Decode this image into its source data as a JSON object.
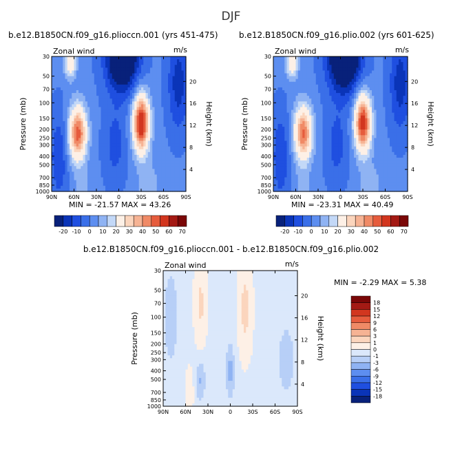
{
  "page_title": "DJF",
  "panel_a": {
    "title": "b.e12.B1850CN.f09_g16.plioccn.001 (yrs 451-475)",
    "label": "Zonal wind",
    "units": "m/s",
    "stats": "MIN = -21.57 MAX = 43.26"
  },
  "panel_b": {
    "title": "b.e12.B1850CN.f09_g16.plio.002 (yrs 601-625)",
    "label": "Zonal wind",
    "units": "m/s",
    "stats": "MIN = -23.31 MAX = 40.49"
  },
  "panel_c": {
    "title": "b.e12.B1850CN.f09_g16.plioccn.001 - b.e12.B1850CN.f09_g16.plio.002",
    "label": "Zonal wind",
    "units": "m/s",
    "stats": "MIN = -2.29 MAX = 5.38"
  },
  "chart_data": [
    {
      "type": "heatmap",
      "title": "b.e12.B1850CN.f09_g16.plioccn.001 (yrs 451-475)",
      "variable": "Zonal wind",
      "units": "m/s",
      "ylabel": "Pressure (mb)",
      "ylabel_right": "Height (km)",
      "x_ticks": [
        "90N",
        "60N",
        "30N",
        "0",
        "30S",
        "60S",
        "90S"
      ],
      "y_ticks": [
        "30",
        "50",
        "70",
        "100",
        "150",
        "200",
        "250",
        "300",
        "400",
        "500",
        "700",
        "850",
        "1000"
      ],
      "y_ticks_right": [
        "4",
        "8",
        "12",
        "16",
        "20"
      ],
      "min": -21.57,
      "max": 43.26,
      "features": [
        {
          "kind": "jet_max",
          "lat": -30,
          "pressure": 170,
          "value": 43
        },
        {
          "kind": "jet_max",
          "lat": 55,
          "pressure": 220,
          "value": 35
        },
        {
          "kind": "easterly_min",
          "lat": -5,
          "pressure": 30,
          "value": -21.57
        }
      ],
      "colorbar": {
        "levels": [
          -20,
          -10,
          0,
          10,
          20,
          30,
          40,
          50,
          60,
          70
        ],
        "tick_labels": [
          "-20",
          "-10",
          "0",
          "10",
          "20",
          "30",
          "40",
          "50",
          "60",
          "70"
        ]
      }
    },
    {
      "type": "heatmap",
      "title": "b.e12.B1850CN.f09_g16.plio.002 (yrs 601-625)",
      "variable": "Zonal wind",
      "units": "m/s",
      "ylabel": "Pressure (mb)",
      "ylabel_right": "Height (km)",
      "x_ticks": [
        "90N",
        "60N",
        "30N",
        "0",
        "30S",
        "60S",
        "90S"
      ],
      "y_ticks": [
        "30",
        "50",
        "70",
        "100",
        "150",
        "200",
        "250",
        "300",
        "400",
        "500",
        "700",
        "850",
        "1000"
      ],
      "y_ticks_right": [
        "4",
        "8",
        "12",
        "16",
        "20"
      ],
      "min": -23.31,
      "max": 40.49,
      "features": [
        {
          "kind": "jet_max",
          "lat": -30,
          "pressure": 170,
          "value": 40
        },
        {
          "kind": "jet_max",
          "lat": 50,
          "pressure": 230,
          "value": 33
        },
        {
          "kind": "easterly_min",
          "lat": -5,
          "pressure": 30,
          "value": -23.31
        }
      ],
      "colorbar": {
        "levels": [
          -20,
          -10,
          0,
          10,
          20,
          30,
          40,
          50,
          60,
          70
        ],
        "tick_labels": [
          "-20",
          "-10",
          "0",
          "10",
          "20",
          "30",
          "40",
          "50",
          "60",
          "70"
        ]
      }
    },
    {
      "type": "heatmap",
      "title": "b.e12.B1850CN.f09_g16.plioccn.001 - b.e12.B1850CN.f09_g16.plio.002",
      "variable": "Zonal wind",
      "units": "m/s",
      "ylabel": "Pressure (mb)",
      "ylabel_right": "Height (km)",
      "x_ticks": [
        "90N",
        "60N",
        "30N",
        "0",
        "30S",
        "60S",
        "90S"
      ],
      "y_ticks": [
        "30",
        "50",
        "70",
        "100",
        "150",
        "200",
        "250",
        "300",
        "400",
        "500",
        "700",
        "850",
        "1000"
      ],
      "y_ticks_right": [
        "4",
        "8",
        "12",
        "16",
        "20"
      ],
      "min": -2.29,
      "max": 5.38,
      "colorbar": {
        "levels": [
          18,
          15,
          12,
          9,
          6,
          3,
          1,
          0,
          -1,
          -3,
          -6,
          -9,
          -12,
          -15,
          -18
        ],
        "tick_labels": [
          "18",
          "15",
          "12",
          "9",
          "6",
          "3",
          "1",
          "0",
          "-1",
          "-3",
          "-6",
          "-9",
          "-12",
          "-15",
          "-18"
        ]
      }
    }
  ],
  "colors": {
    "wind_scale": [
      "#08217a",
      "#0a34b8",
      "#1f4fe0",
      "#3a6fe8",
      "#5d8ef0",
      "#8fb3f3",
      "#c3d8f7",
      "#fdf0e6",
      "#fbd5bd",
      "#f6b394",
      "#f08a66",
      "#e65c3d",
      "#d2361f",
      "#a41a14",
      "#7a0707"
    ],
    "diff_scale": [
      "#7a0707",
      "#a41a14",
      "#d2361f",
      "#e65c3d",
      "#f08a66",
      "#f6b394",
      "#fbd5bd",
      "#fdf0e6",
      "#dbe8fb",
      "#b7cff7",
      "#8fb3f3",
      "#5d8ef0",
      "#3a6fe8",
      "#1f4fe0",
      "#0a34b8",
      "#08217a"
    ]
  }
}
